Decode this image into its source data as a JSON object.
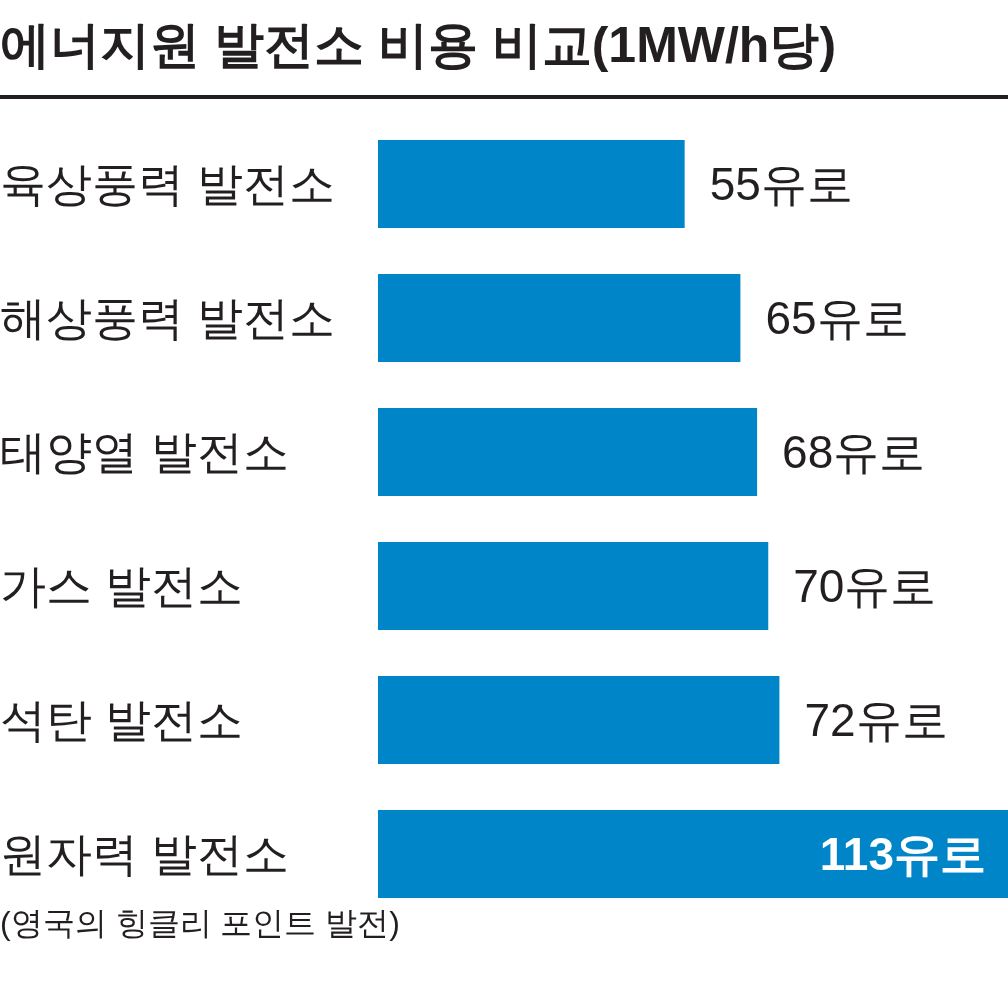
{
  "chart_data": {
    "type": "bar",
    "orientation": "horizontal",
    "title": "에너지원 발전소 비용 비교(1MW/h당)",
    "categories": [
      "육상풍력 발전소",
      "해상풍력 발전소",
      "태양열 발전소",
      "가스 발전소",
      "석탄 발전소",
      "원자력 발전소"
    ],
    "values": [
      55,
      65,
      68,
      70,
      72,
      113
    ],
    "value_labels": [
      "55유로",
      "65유로",
      "68유로",
      "70유로",
      "72유로",
      "113유로"
    ],
    "color": "#0085c8",
    "annotations": [
      "(영국의 힝클리 포인트 발전)"
    ]
  }
}
